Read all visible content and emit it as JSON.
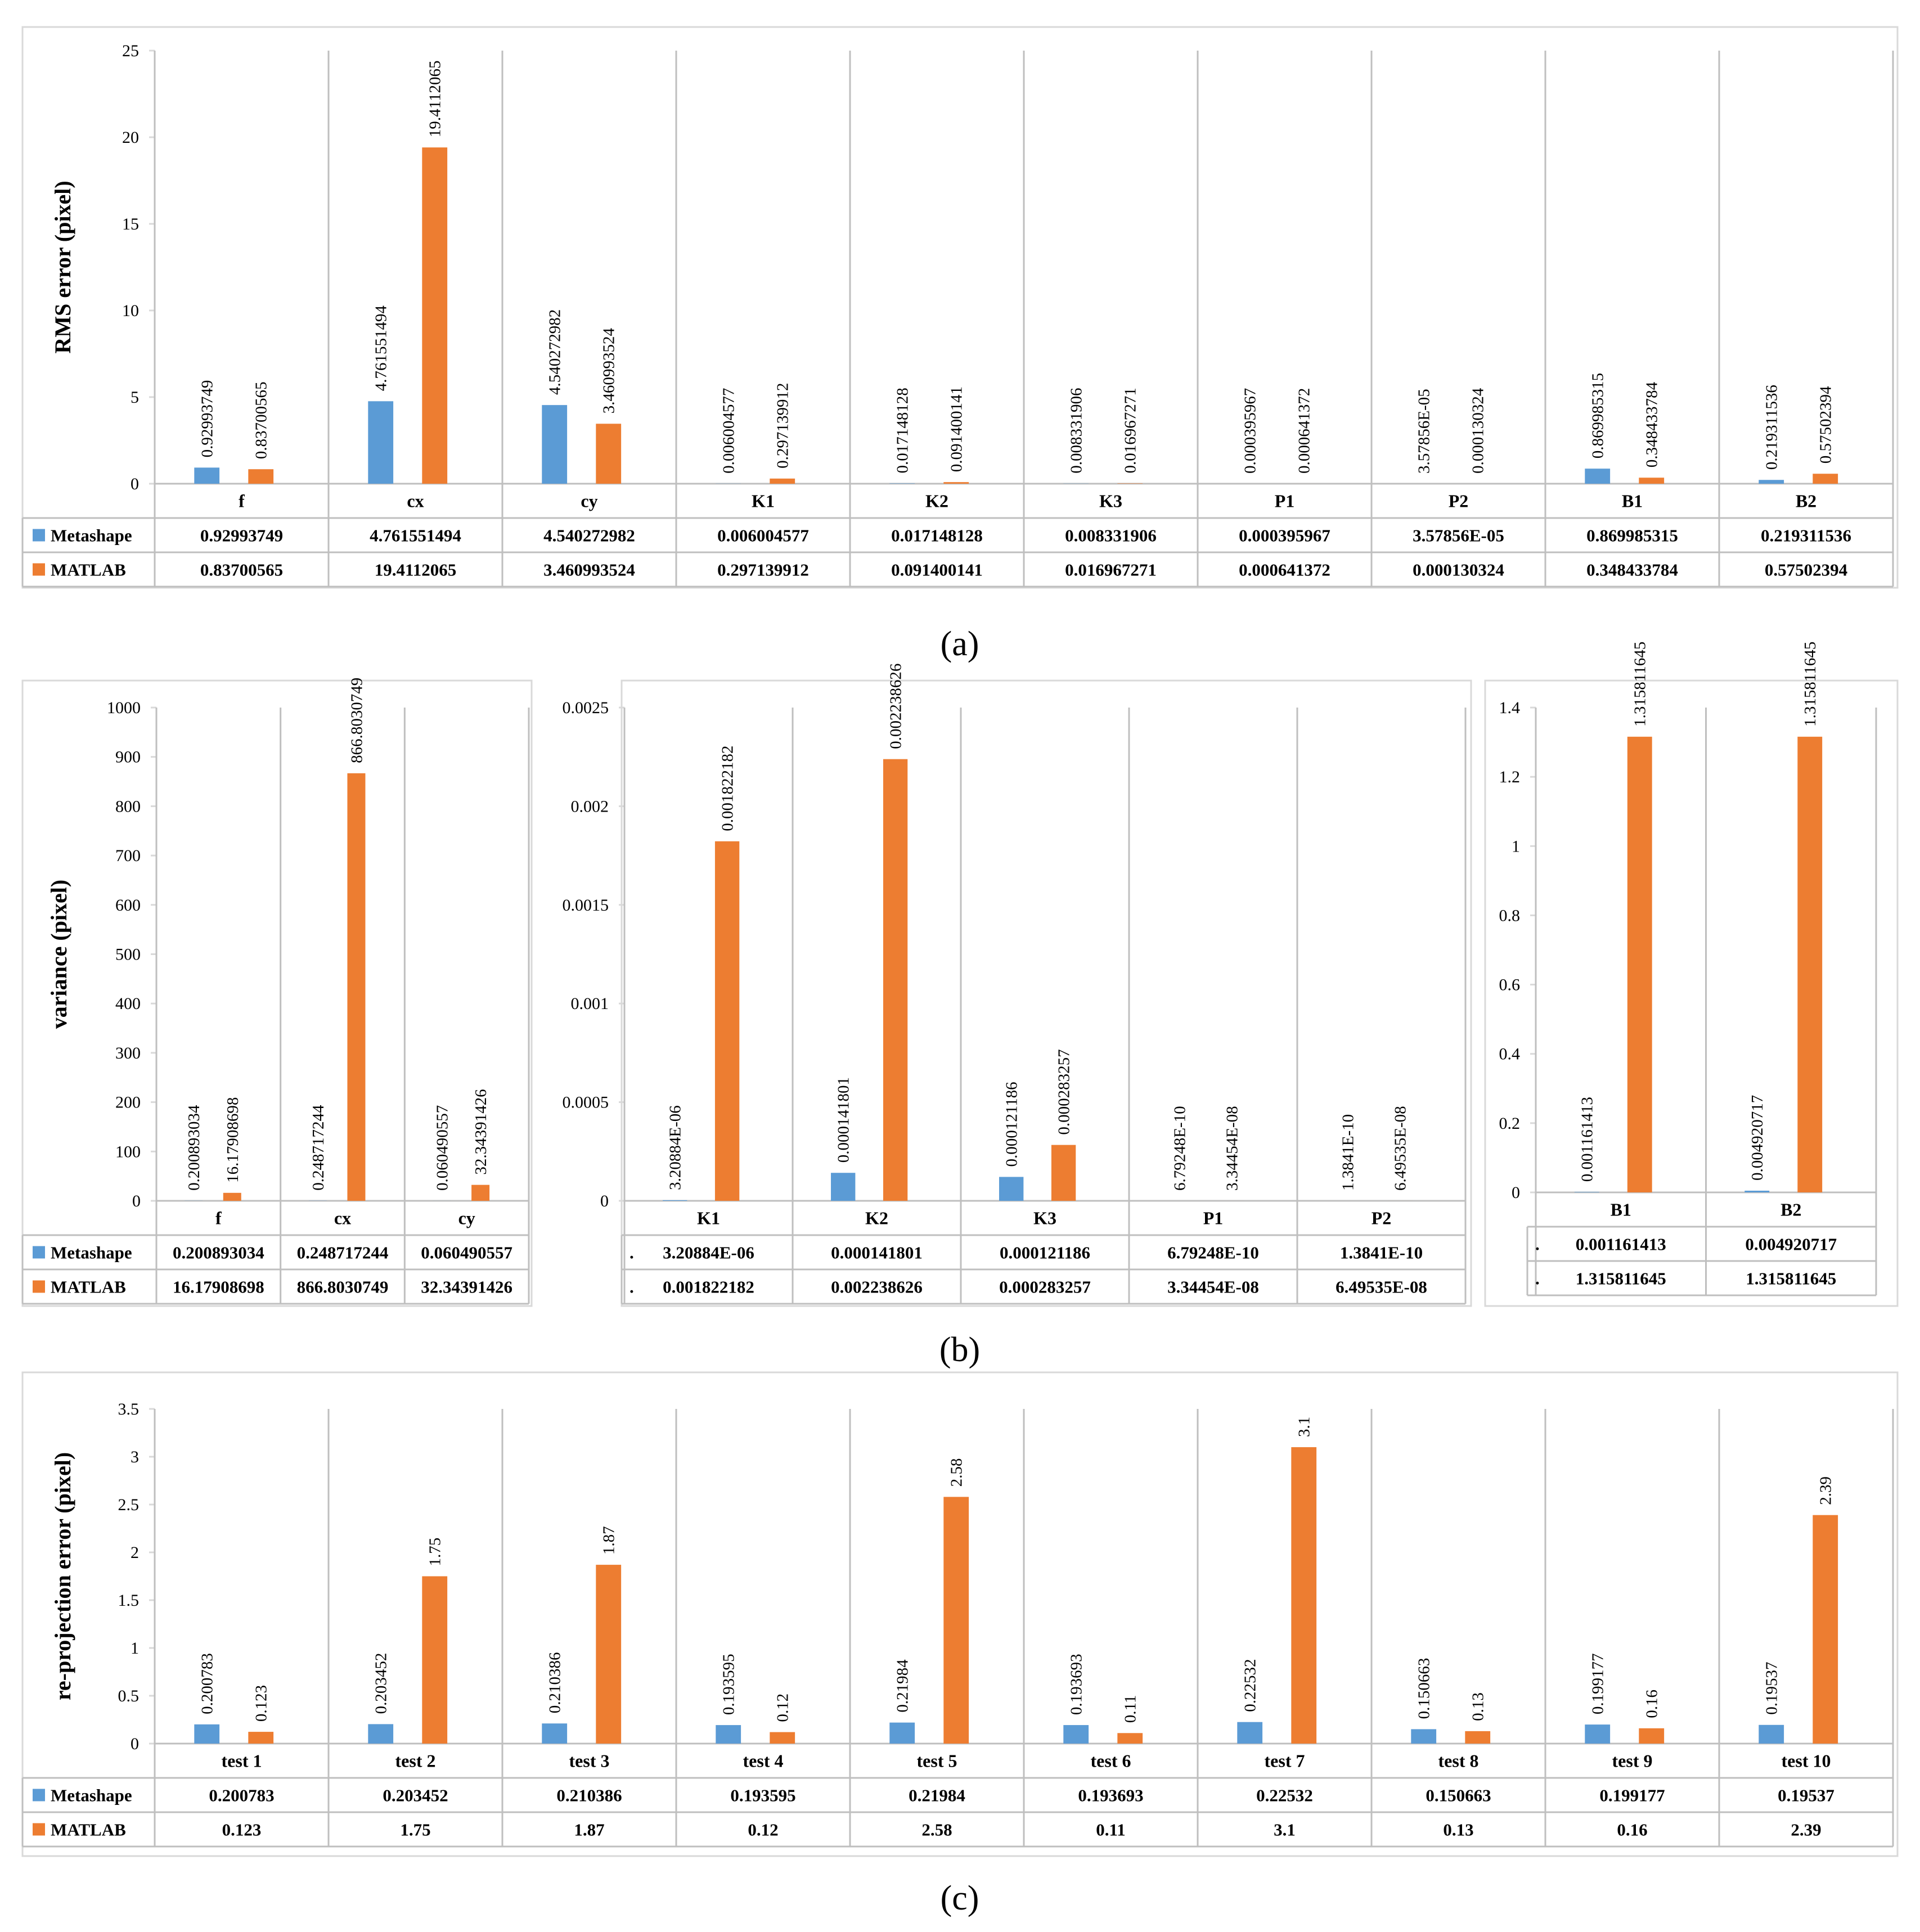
{
  "colors": {
    "Metashape": "#5b9bd5",
    "MATLAB": "#ed7d31"
  },
  "chart_data": [
    {
      "id": "a",
      "type": "bar",
      "ylabel": "RMS error (pixel)",
      "ylim": [
        0,
        25
      ],
      "yticks": [
        0,
        5,
        10,
        15,
        20,
        25
      ],
      "categories": [
        "f",
        "cx",
        "cy",
        "K1",
        "K2",
        "K3",
        "P1",
        "P2",
        "B1",
        "B2"
      ],
      "series": [
        {
          "name": "Metashape",
          "values": [
            0.92993749,
            4.761551494,
            4.540272982,
            0.006004577,
            0.017148128,
            0.008331906,
            0.000395967,
            3.57856e-05,
            0.869985315,
            0.219311536
          ],
          "labels": [
            "0.92993749",
            "4.761551494",
            "4.540272982",
            "0.006004577",
            "0.017148128",
            "0.008331906",
            "0.000395967",
            "3.57856E-05",
            "0.869985315",
            "0.219311536"
          ]
        },
        {
          "name": "MATLAB",
          "values": [
            0.83700565,
            19.4112065,
            3.460993524,
            0.297139912,
            0.091400141,
            0.016967271,
            0.000641372,
            0.000130324,
            0.348433784,
            0.57502394
          ],
          "labels": [
            "0.83700565",
            "19.4112065",
            "3.460993524",
            "0.297139912",
            "0.091400141",
            "0.016967271",
            "0.000641372",
            "0.000130324",
            "0.348433784",
            "0.57502394"
          ]
        }
      ],
      "data_table": true,
      "grid": "vertical",
      "caption": "(a)"
    },
    {
      "id": "b1",
      "type": "bar",
      "ylabel": "variance (pixel)",
      "ylim": [
        0,
        1000
      ],
      "yticks": [
        0,
        100,
        200,
        300,
        400,
        500,
        600,
        700,
        800,
        900,
        1000
      ],
      "categories": [
        "f",
        "cx",
        "cy"
      ],
      "series": [
        {
          "name": "Metashape",
          "values": [
            0.200893034,
            0.248717244,
            0.060490557
          ],
          "labels": [
            "0.200893034",
            "0.248717244",
            "0.060490557"
          ]
        },
        {
          "name": "MATLAB",
          "values": [
            16.17908698,
            866.8030749,
            32.34391426
          ],
          "labels": [
            "16.17908698",
            "866.8030749",
            "32.34391426"
          ]
        }
      ],
      "data_table": true,
      "grid": "vertical"
    },
    {
      "id": "b2",
      "type": "bar",
      "ylim": [
        0,
        0.0025
      ],
      "yticks": [
        0,
        0.0005,
        0.001,
        0.0015,
        0.002,
        0.0025
      ],
      "categories": [
        "K1",
        "K2",
        "K3",
        "P1",
        "P2"
      ],
      "series": [
        {
          "name": ".",
          "values": [
            3.20884e-06,
            0.000141801,
            0.000121186,
            6.79248e-10,
            1.3841e-10
          ],
          "labels": [
            "3.20884E-06",
            "0.000141801",
            "0.000121186",
            "6.79248E-10",
            "1.3841E-10"
          ]
        },
        {
          "name": ".",
          "values": [
            0.001822182,
            0.002238626,
            0.000283257,
            3.34454e-08,
            6.49535e-08
          ],
          "labels": [
            "0.001822182",
            "0.002238626",
            "0.000283257",
            "3.34454E-08",
            "6.49535E-08"
          ]
        }
      ],
      "data_table": true,
      "grid": "vertical"
    },
    {
      "id": "b3",
      "type": "bar",
      "ylim": [
        0,
        1.4
      ],
      "yticks": [
        0,
        0.2,
        0.4,
        0.6,
        0.8,
        1,
        1.2,
        1.4
      ],
      "categories": [
        "B1",
        "B2"
      ],
      "series": [
        {
          "name": ".",
          "values": [
            0.001161413,
            0.004920717
          ],
          "labels": [
            "0.001161413",
            "0.004920717"
          ]
        },
        {
          "name": ".",
          "values": [
            1.315811645,
            1.315811645
          ],
          "labels": [
            "1.315811645",
            "1.315811645"
          ]
        }
      ],
      "data_table": true,
      "grid": "vertical",
      "caption": "(b)"
    },
    {
      "id": "c",
      "type": "bar",
      "ylabel": "re-projection error (pixel)",
      "ylim": [
        0,
        3.5
      ],
      "yticks": [
        0,
        0.5,
        1,
        1.5,
        2,
        2.5,
        3,
        3.5
      ],
      "categories": [
        "test 1",
        "test 2",
        "test 3",
        "test 4",
        "test 5",
        "test 6",
        "test 7",
        "test 8",
        "test 9",
        "test 10"
      ],
      "series": [
        {
          "name": "Metashape",
          "values": [
            0.200783,
            0.203452,
            0.210386,
            0.193595,
            0.21984,
            0.193693,
            0.22532,
            0.150663,
            0.199177,
            0.19537
          ],
          "labels": [
            "0.200783",
            "0.203452",
            "0.210386",
            "0.193595",
            "0.21984",
            "0.193693",
            "0.22532",
            "0.150663",
            "0.199177",
            "0.19537"
          ]
        },
        {
          "name": "MATLAB",
          "values": [
            0.123,
            1.75,
            1.87,
            0.12,
            2.58,
            0.11,
            3.1,
            0.13,
            0.16,
            2.39
          ],
          "labels": [
            "0.123",
            "1.75",
            "1.87",
            "0.12",
            "2.58",
            "0.11",
            "3.1",
            "0.13",
            "0.16",
            "2.39"
          ]
        }
      ],
      "data_table": true,
      "grid": "vertical",
      "caption": "(c)"
    }
  ]
}
